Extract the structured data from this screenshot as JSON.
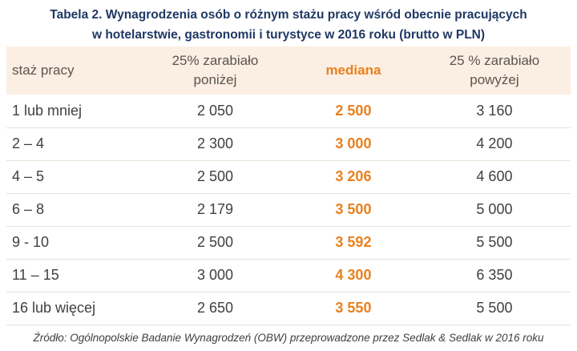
{
  "title": {
    "line1": "Tabela 2. Wynagrodzenia osób o różnym stażu pracy wśród obecnie pracujących",
    "line2": "w hotelarstwie, gastronomii i turystyce w 2016 roku (brutto w PLN)"
  },
  "table": {
    "headers": {
      "col1": "staż pracy",
      "col2_line1": "25% zarabiało",
      "col2_line2": "poniżej",
      "col3": "mediana",
      "col4_line1": "25 % zarabiało",
      "col4_line2": "powyżej"
    },
    "rows": [
      {
        "tenure": "1 lub mniej",
        "below": "2 050",
        "median": "2 500",
        "above": "3 160"
      },
      {
        "tenure": "2 – 4",
        "below": "2 300",
        "median": "3 000",
        "above": "4 200"
      },
      {
        "tenure": "4 – 5",
        "below": "2 500",
        "median": "3 206",
        "above": "4 600"
      },
      {
        "tenure": "6 – 8",
        "below": "2 179",
        "median": "3 500",
        "above": "5 000"
      },
      {
        "tenure": "9 - 10",
        "below": "2 500",
        "median": "3 592",
        "above": "5 500"
      },
      {
        "tenure": "11 – 15",
        "below": "3 000",
        "median": "4 300",
        "above": "6 350"
      },
      {
        "tenure": "16 lub więcej",
        "below": "2 650",
        "median": "3 550",
        "above": "5 500"
      }
    ]
  },
  "footer": {
    "source": "Źródło: Ogólnopolskie Badanie Wynagrodzeń (OBW) przeprowadzone przez Sedlak & Sedlak w 2016 roku"
  },
  "colors": {
    "title_navy": "#1F3864",
    "accent_orange": "#E9801D",
    "header_bg": "#FBEEE2",
    "body_text": "#404040",
    "header_text": "#5A5550",
    "divider": "#E5E2D6"
  },
  "chart_data": {
    "type": "table",
    "title": "Tabela 2. Wynagrodzenia osób o różnym stażu pracy wśród obecnie pracujących w hotelarstwie, gastronomii i turystyce w 2016 roku (brutto w PLN)",
    "columns": [
      "staż pracy",
      "25% zarabiało poniżej",
      "mediana",
      "25 % zarabiało powyżej"
    ],
    "rows": [
      [
        "1 lub mniej",
        2050,
        2500,
        3160
      ],
      [
        "2 – 4",
        2300,
        3000,
        4200
      ],
      [
        "4 – 5",
        2500,
        3206,
        4600
      ],
      [
        "6 – 8",
        2179,
        3500,
        5000
      ],
      [
        "9 - 10",
        2500,
        3592,
        5500
      ],
      [
        "11 – 15",
        3000,
        4300,
        6350
      ],
      [
        "16 lub więcej",
        2650,
        3550,
        5500
      ]
    ],
    "units": "PLN brutto",
    "source": "Źródło: Ogólnopolskie Badanie Wynagrodzeń (OBW) przeprowadzone przez Sedlak & Sedlak w 2016 roku"
  }
}
